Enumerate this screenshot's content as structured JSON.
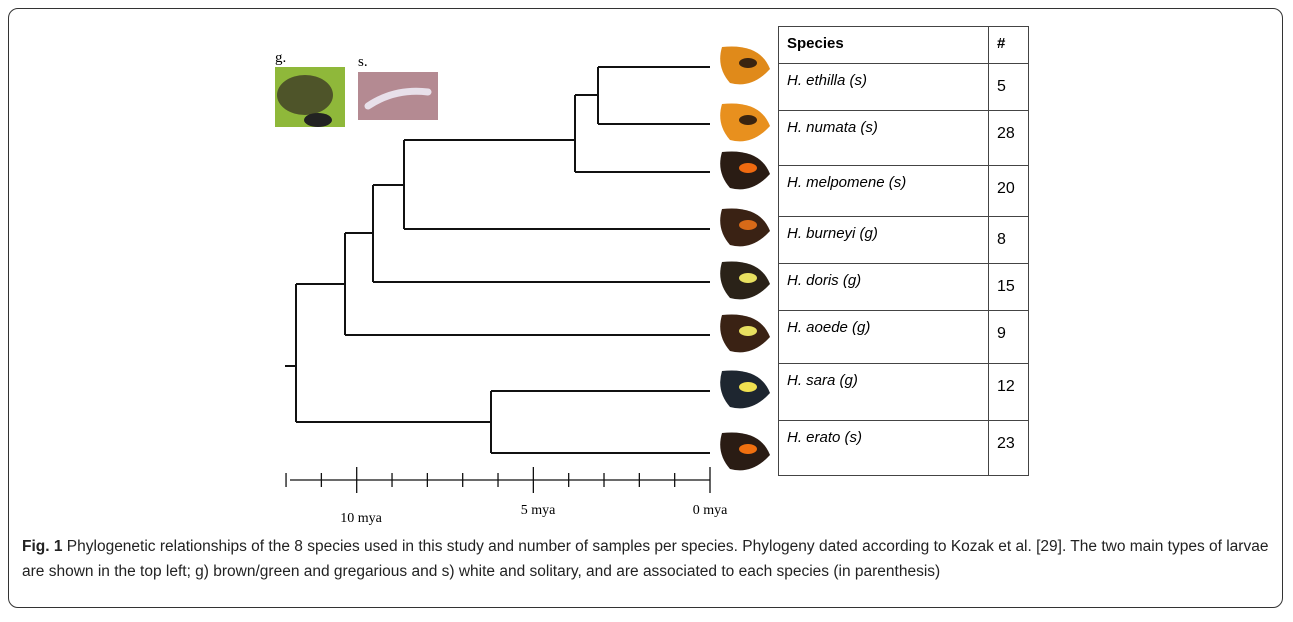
{
  "figure": {
    "larvae": [
      "g.",
      "s."
    ],
    "scale_labels": [
      "10 mya",
      "5 mya",
      "0 mya"
    ],
    "table": {
      "header": [
        "Species",
        "#"
      ],
      "rows": [
        [
          "H. ethilla (s)",
          5
        ],
        [
          "H. numata (s)",
          28
        ],
        [
          "H. melpomene (s)",
          20
        ],
        [
          "H. burneyi (g)",
          8
        ],
        [
          "H. doris (g)",
          15
        ],
        [
          "H. aoede (g)",
          9
        ],
        [
          "H. sara (g)",
          12
        ],
        [
          "H. erato (s)",
          23
        ]
      ]
    },
    "caption": {
      "label": "Fig. 1",
      "text": "Phylogenetic relationships of the 8 species used in this study and number of samples per species. Phylogeny dated according to Kozak et al. [29]. The two main types of larvae are shown in the top left; g) brown/green and gregarious and s) white and solitary, and are associated to each species (in parenthesis)"
    }
  }
}
